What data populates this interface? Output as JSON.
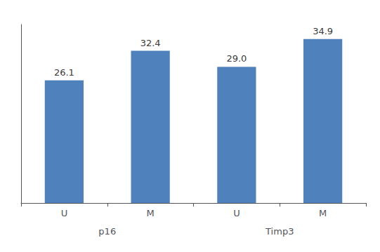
{
  "chart_data": {
    "type": "bar",
    "categories": [
      "U",
      "M",
      "U",
      "M"
    ],
    "groups": [
      "p16",
      "Timp3"
    ],
    "values": [
      26.1,
      32.4,
      29.0,
      34.9
    ],
    "value_labels": [
      "26.1",
      "32.4",
      "29.0",
      "34.9"
    ],
    "data_labels": true,
    "color": "#4F81BD",
    "ylim": [
      0,
      38
    ],
    "yticks": [],
    "tick_labels": "x",
    "grid": false
  }
}
